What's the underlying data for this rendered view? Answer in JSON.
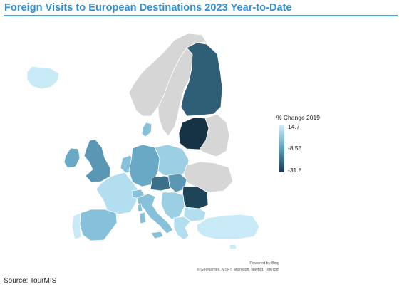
{
  "title": "Foreign Visits to European Destinations 2023 Year-to-Date",
  "colors": {
    "title": "#2f8fd0",
    "rule": "#39a3e0",
    "no_data": "#d6d6d6",
    "border": "#ffffff",
    "scale_high": "#cdeef8",
    "scale_mid": "#5c9db8",
    "scale_low": "#1a3d52"
  },
  "legend": {
    "title": "% Change 2019",
    "max_label": "14.7",
    "mid_label": "-8.55",
    "min_label": "-31.8",
    "max": 14.7,
    "mid": -8.55,
    "min": -31.8
  },
  "map_credit": {
    "powered_by": "Powered by Bing",
    "attribution": "© GeoNames, MSFT, Microsoft, Navteq, TomTom"
  },
  "source": "Source: TourMIS"
}
